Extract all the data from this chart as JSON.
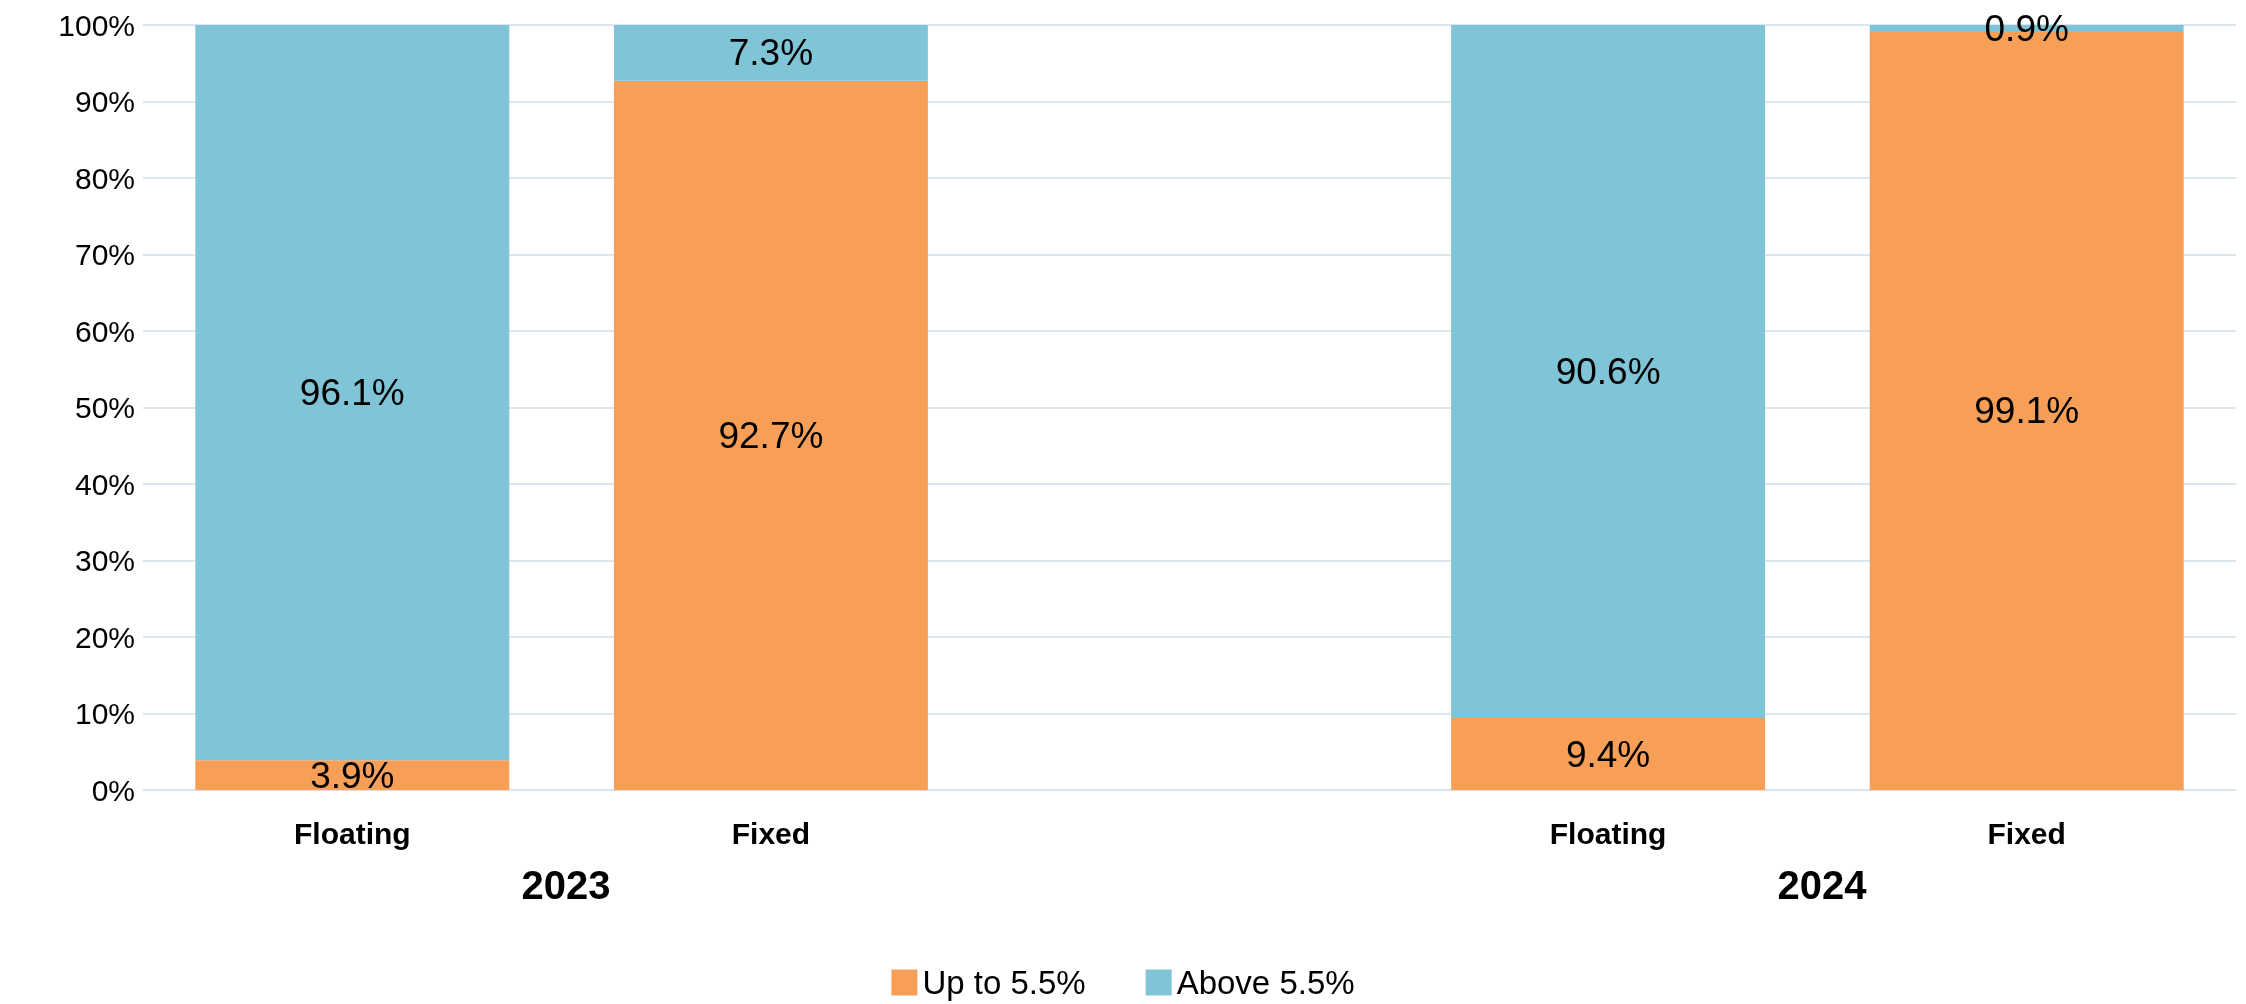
{
  "chart_data": {
    "type": "bar",
    "stacked": true,
    "categories": [
      "Floating",
      "Fixed",
      null,
      "Floating",
      "Fixed"
    ],
    "series": [
      {
        "name": "Up to 5.5%",
        "color": "#f79f57",
        "values": [
          3.9,
          92.7,
          null,
          9.4,
          99.1
        ],
        "value_labels": [
          "3.9%",
          "92.7%",
          null,
          "9.4%",
          "99.1%"
        ]
      },
      {
        "name": "Above 5.5%",
        "color": "#80c4d7",
        "values": [
          96.1,
          7.3,
          null,
          90.6,
          0.9
        ],
        "value_labels": [
          "96.1%",
          "7.3%",
          null,
          "90.6%",
          "0.9%"
        ]
      }
    ],
    "ylim": [
      0,
      100
    ],
    "yticks": [
      {
        "value": 0,
        "label": "0%"
      },
      {
        "value": 10,
        "label": "10%"
      },
      {
        "value": 20,
        "label": "20%"
      },
      {
        "value": 30,
        "label": "30%"
      },
      {
        "value": 40,
        "label": "40%"
      },
      {
        "value": 50,
        "label": "50%"
      },
      {
        "value": 60,
        "label": "60%"
      },
      {
        "value": 70,
        "label": "70%"
      },
      {
        "value": 80,
        "label": "80%"
      },
      {
        "value": 90,
        "label": "90%"
      },
      {
        "value": 100,
        "label": "100%"
      }
    ],
    "annotations": [
      "2023",
      "2024"
    ],
    "grid": "y",
    "legend": "bottom"
  }
}
